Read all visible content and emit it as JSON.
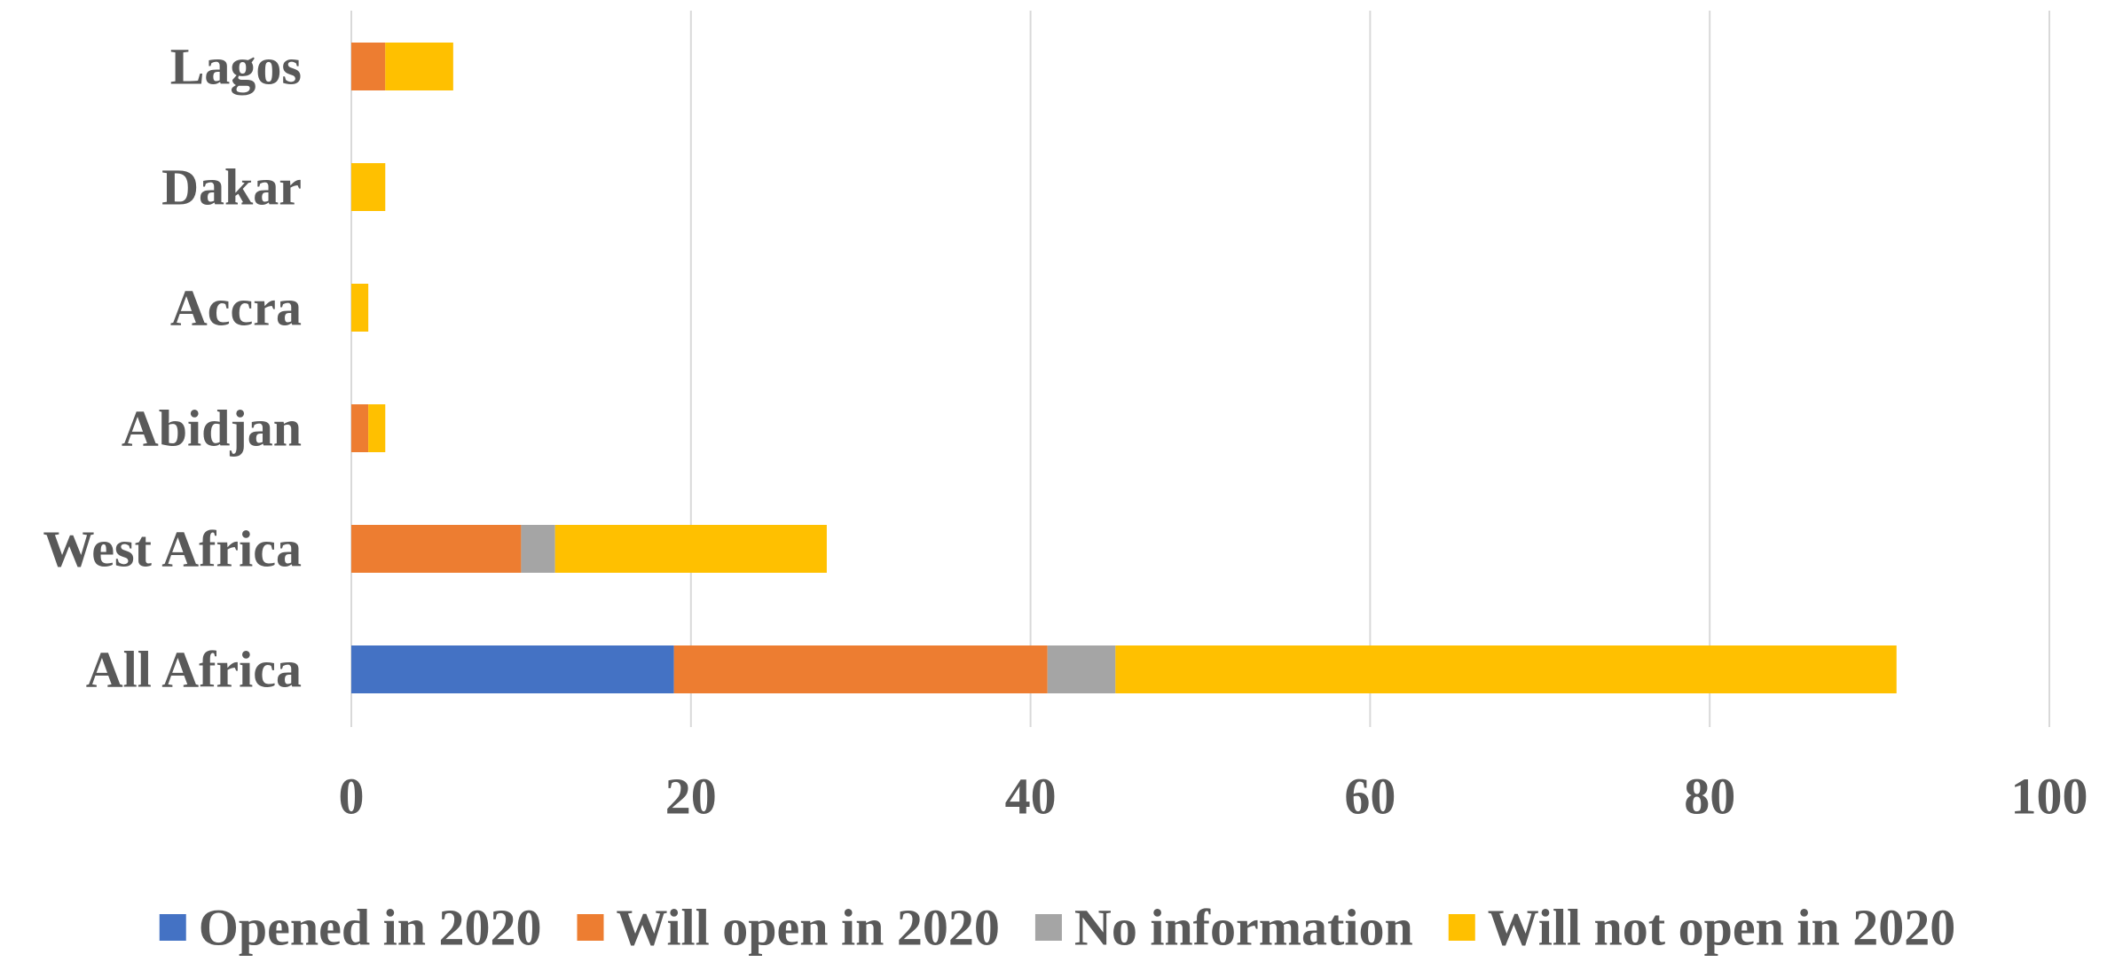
{
  "chart_data": {
    "type": "bar",
    "orientation": "horizontal",
    "stacked": true,
    "categories": [
      "All Africa",
      "West Africa",
      "Abidjan",
      "Accra",
      "Dakar",
      "Lagos"
    ],
    "series": [
      {
        "name": "Opened in 2020",
        "color": "#4472C4",
        "values": [
          19,
          0,
          0,
          0,
          0,
          0
        ]
      },
      {
        "name": "Will open in 2020",
        "color": "#ED7D31",
        "values": [
          22,
          10,
          1,
          0,
          0,
          2
        ]
      },
      {
        "name": "No information",
        "color": "#A5A5A5",
        "values": [
          4,
          2,
          0,
          0,
          0,
          0
        ]
      },
      {
        "name": "Will not open in 2020",
        "color": "#FFC000",
        "values": [
          46,
          16,
          1,
          1,
          2,
          4
        ]
      }
    ],
    "xticks": [
      0,
      20,
      40,
      60,
      80,
      100
    ],
    "xlim": [
      0,
      100
    ],
    "xgrid": true,
    "legend_position": "bottom"
  }
}
